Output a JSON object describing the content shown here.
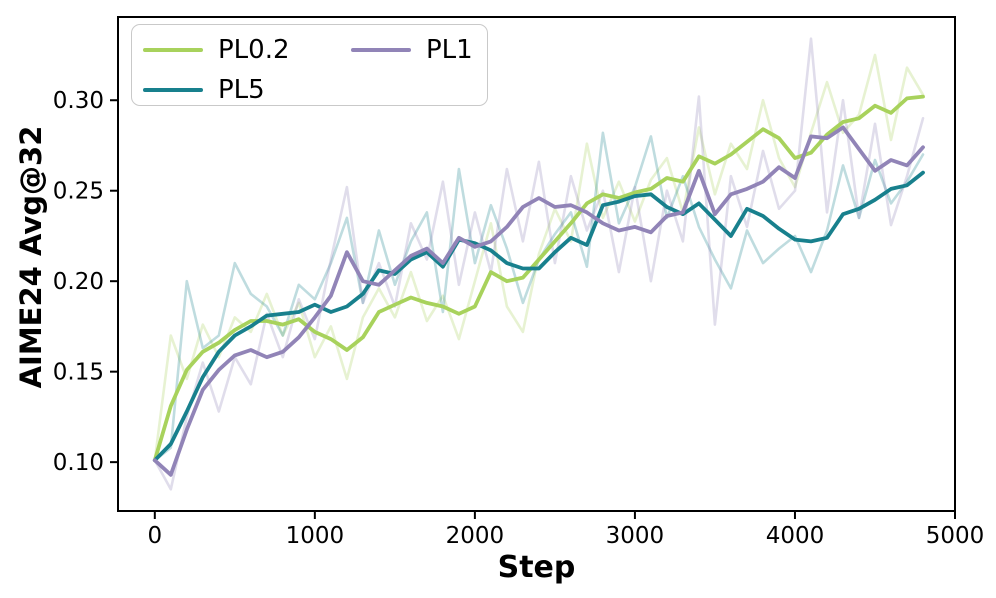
{
  "chart_data": {
    "type": "line",
    "title": "",
    "xlabel": "Step",
    "ylabel": "AIME24 Avg@32",
    "x_ticks": [
      0,
      1000,
      2000,
      3000,
      4000,
      5000
    ],
    "y_ticks": [
      0.1,
      0.15,
      0.2,
      0.25,
      0.3
    ],
    "xlim": [
      -230,
      5000
    ],
    "ylim": [
      0.073,
      0.346
    ],
    "grid": false,
    "legend_position": "upper left",
    "raw_line_opacity": 0.28,
    "steps": [
      0,
      100,
      200,
      300,
      400,
      500,
      600,
      700,
      800,
      900,
      1000,
      1100,
      1200,
      1300,
      1400,
      1500,
      1600,
      1700,
      1800,
      1900,
      2000,
      2100,
      2200,
      2300,
      2400,
      2500,
      2600,
      2700,
      2800,
      2900,
      3000,
      3100,
      3200,
      3300,
      3400,
      3500,
      3600,
      3700,
      3800,
      3900,
      4000,
      4100,
      4200,
      4300,
      4400,
      4500,
      4600,
      4700,
      4800
    ],
    "series": [
      {
        "name": "PL0.2",
        "color": "#a8d25c",
        "smoothed": [
          0.101,
          0.131,
          0.151,
          0.161,
          0.166,
          0.173,
          0.178,
          0.178,
          0.176,
          0.179,
          0.172,
          0.168,
          0.162,
          0.169,
          0.183,
          0.187,
          0.191,
          0.188,
          0.186,
          0.182,
          0.186,
          0.205,
          0.2,
          0.202,
          0.212,
          0.222,
          0.232,
          0.243,
          0.248,
          0.246,
          0.249,
          0.251,
          0.257,
          0.255,
          0.269,
          0.265,
          0.27,
          0.277,
          0.284,
          0.279,
          0.268,
          0.271,
          0.281,
          0.288,
          0.29,
          0.297,
          0.293,
          0.301,
          0.302
        ],
        "raw": [
          0.101,
          0.17,
          0.146,
          0.176,
          0.158,
          0.18,
          0.172,
          0.193,
          0.17,
          0.188,
          0.158,
          0.175,
          0.146,
          0.18,
          0.196,
          0.18,
          0.205,
          0.178,
          0.192,
          0.168,
          0.2,
          0.232,
          0.186,
          0.172,
          0.215,
          0.24,
          0.222,
          0.276,
          0.235,
          0.255,
          0.233,
          0.256,
          0.268,
          0.238,
          0.285,
          0.248,
          0.276,
          0.262,
          0.3,
          0.268,
          0.252,
          0.282,
          0.31,
          0.282,
          0.292,
          0.325,
          0.278,
          0.318,
          0.303
        ]
      },
      {
        "name": "PL5",
        "color": "#18808d",
        "smoothed": [
          0.101,
          0.11,
          0.128,
          0.147,
          0.161,
          0.17,
          0.175,
          0.181,
          0.182,
          0.183,
          0.187,
          0.183,
          0.186,
          0.193,
          0.206,
          0.204,
          0.212,
          0.216,
          0.208,
          0.223,
          0.221,
          0.217,
          0.21,
          0.207,
          0.207,
          0.216,
          0.224,
          0.22,
          0.242,
          0.244,
          0.247,
          0.248,
          0.241,
          0.237,
          0.243,
          0.234,
          0.225,
          0.24,
          0.236,
          0.229,
          0.223,
          0.222,
          0.224,
          0.237,
          0.24,
          0.245,
          0.251,
          0.253,
          0.26
        ],
        "raw": [
          0.101,
          0.108,
          0.2,
          0.163,
          0.17,
          0.21,
          0.193,
          0.186,
          0.17,
          0.198,
          0.19,
          0.21,
          0.235,
          0.188,
          0.228,
          0.198,
          0.222,
          0.238,
          0.183,
          0.262,
          0.21,
          0.242,
          0.218,
          0.188,
          0.212,
          0.226,
          0.238,
          0.208,
          0.282,
          0.232,
          0.252,
          0.28,
          0.235,
          0.258,
          0.23,
          0.212,
          0.196,
          0.228,
          0.21,
          0.218,
          0.225,
          0.205,
          0.228,
          0.264,
          0.235,
          0.267,
          0.243,
          0.255,
          0.27
        ]
      },
      {
        "name": "PL1",
        "color": "#9184b7",
        "smoothed": [
          0.101,
          0.093,
          0.118,
          0.14,
          0.151,
          0.159,
          0.162,
          0.158,
          0.161,
          0.169,
          0.18,
          0.192,
          0.216,
          0.2,
          0.198,
          0.206,
          0.214,
          0.218,
          0.21,
          0.224,
          0.219,
          0.222,
          0.23,
          0.241,
          0.246,
          0.241,
          0.242,
          0.238,
          0.232,
          0.228,
          0.23,
          0.227,
          0.236,
          0.238,
          0.261,
          0.237,
          0.248,
          0.251,
          0.255,
          0.263,
          0.257,
          0.28,
          0.279,
          0.285,
          0.273,
          0.261,
          0.267,
          0.264,
          0.274
        ],
        "raw": [
          0.101,
          0.085,
          0.125,
          0.155,
          0.128,
          0.158,
          0.143,
          0.182,
          0.158,
          0.19,
          0.168,
          0.212,
          0.252,
          0.188,
          0.21,
          0.186,
          0.232,
          0.212,
          0.255,
          0.198,
          0.238,
          0.205,
          0.262,
          0.222,
          0.266,
          0.21,
          0.258,
          0.228,
          0.25,
          0.205,
          0.252,
          0.2,
          0.25,
          0.222,
          0.302,
          0.176,
          0.258,
          0.23,
          0.272,
          0.24,
          0.25,
          0.334,
          0.238,
          0.3,
          0.235,
          0.287,
          0.231,
          0.258,
          0.29
        ]
      }
    ]
  },
  "legend": {
    "item_pl02": "PL0.2",
    "item_pl5": "PL5",
    "item_pl1": "PL1"
  }
}
